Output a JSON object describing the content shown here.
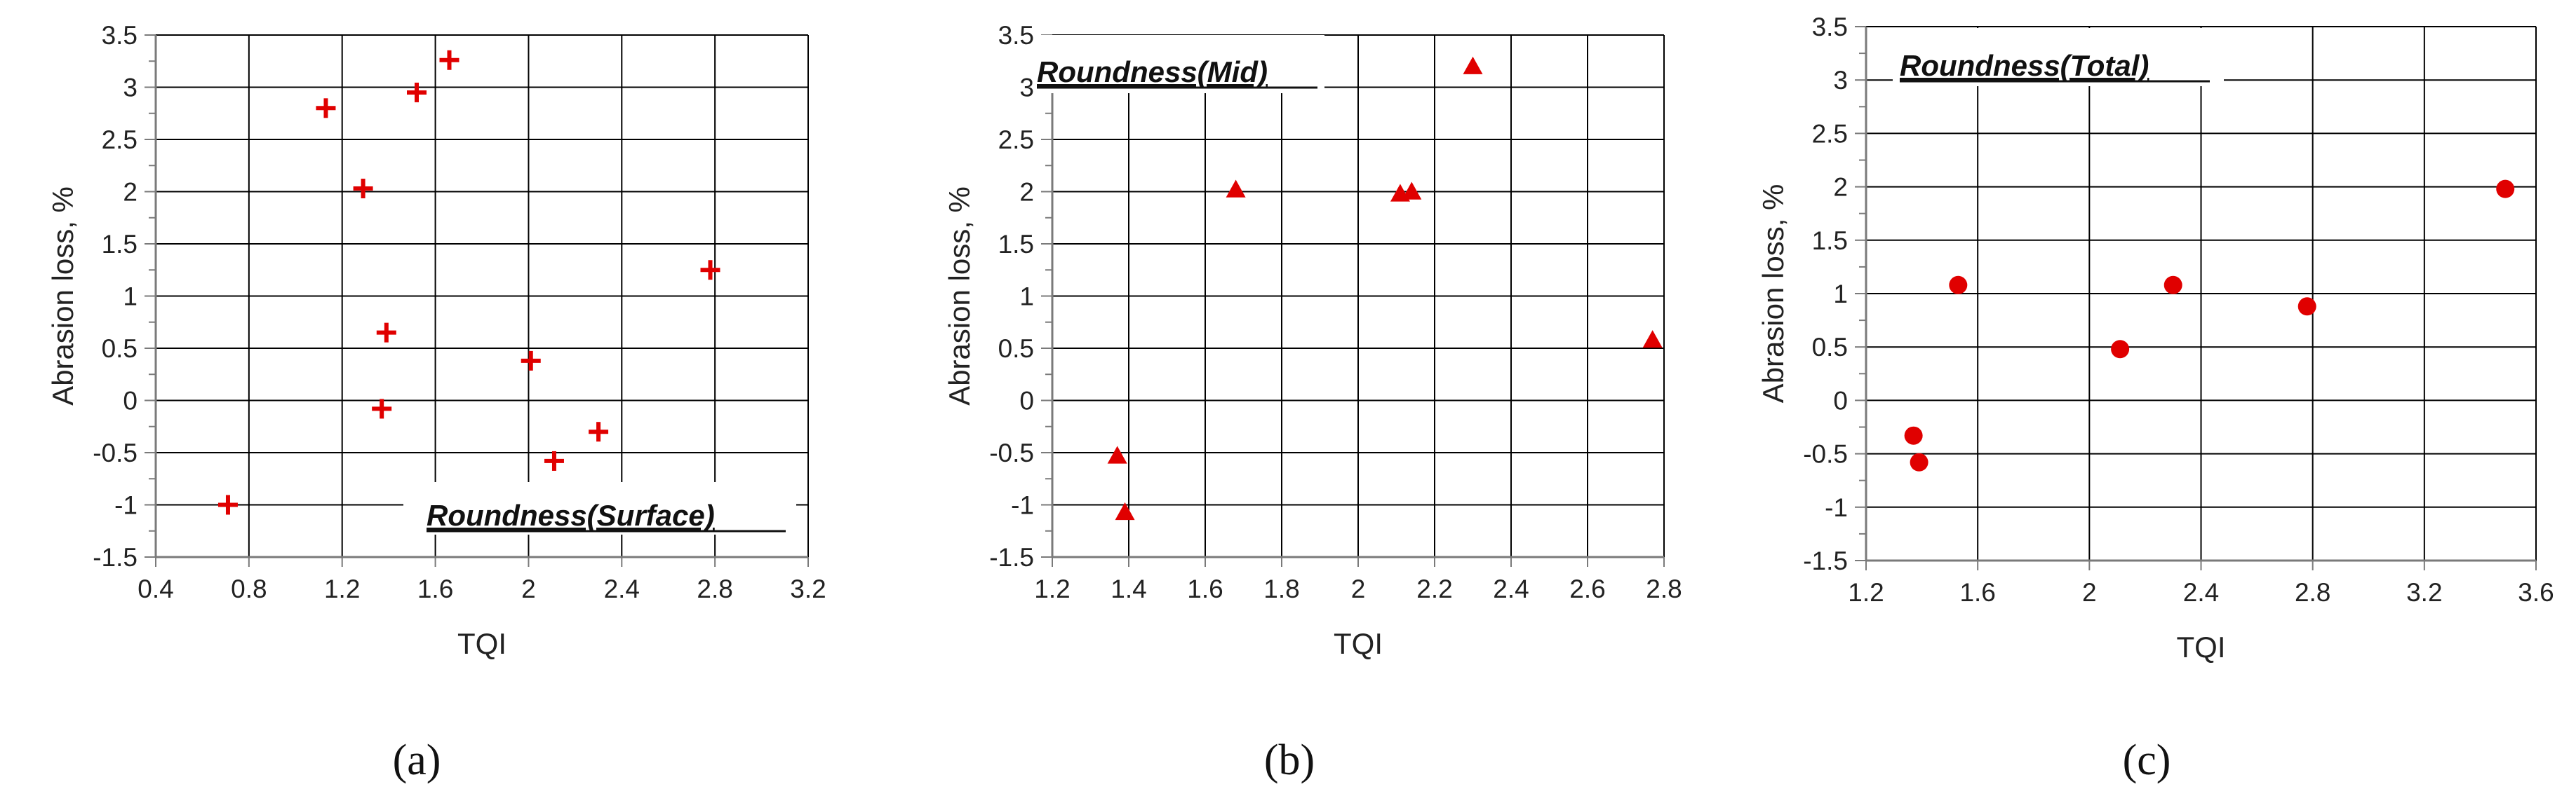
{
  "colors": {
    "marker": "#e00000",
    "grid": "#000000",
    "axis": "#7a7a7a"
  },
  "chart_data": [
    {
      "type": "scatter",
      "panel_label": "(a)",
      "legend_label": "Roundness(Surface)",
      "legend_position": "bottom-right",
      "marker": "plus",
      "xlabel": "TQI",
      "ylabel": "Abrasion loss, %",
      "xlim": [
        0.4,
        3.2
      ],
      "ylim": [
        -1.5,
        3.5
      ],
      "xticks": [
        0.4,
        0.8,
        1.2,
        1.6,
        2,
        2.4,
        2.8,
        3.2
      ],
      "xtick_labels": [
        "0.4",
        "0.8",
        "1.2",
        "1.6",
        "2",
        "2.4",
        "2.8",
        "3.2"
      ],
      "yticks": [
        -1.5,
        -1,
        -0.5,
        0,
        0.5,
        1,
        1.5,
        2,
        2.5,
        3,
        3.5
      ],
      "ytick_labels": [
        "-1.5",
        "-1",
        "-0.5",
        "0",
        "0.5",
        "1",
        "1.5",
        "2",
        "2.5",
        "3",
        "3.5"
      ],
      "points": [
        {
          "x": 0.71,
          "y": -1.0
        },
        {
          "x": 1.13,
          "y": 2.8
        },
        {
          "x": 1.29,
          "y": 2.03
        },
        {
          "x": 1.37,
          "y": -0.08
        },
        {
          "x": 1.39,
          "y": 0.65
        },
        {
          "x": 1.52,
          "y": 2.95
        },
        {
          "x": 1.66,
          "y": 3.26
        },
        {
          "x": 2.01,
          "y": 0.38
        },
        {
          "x": 2.11,
          "y": -0.58
        },
        {
          "x": 2.3,
          "y": -0.3
        },
        {
          "x": 2.78,
          "y": 1.25
        }
      ]
    },
    {
      "type": "scatter",
      "panel_label": "(b)",
      "legend_label": "Roundness(Mid)",
      "legend_position": "top-left",
      "marker": "triangle",
      "xlabel": "TQI",
      "ylabel": "Abrasion loss, %",
      "xlim": [
        1.2,
        2.8
      ],
      "ylim": [
        -1.5,
        3.5
      ],
      "xticks": [
        1.2,
        1.4,
        1.6,
        1.8,
        2,
        2.2,
        2.4,
        2.6,
        2.8
      ],
      "xtick_labels": [
        "1.2",
        "1.4",
        "1.6",
        "1.8",
        "2",
        "2.2",
        "2.4",
        "2.6",
        "2.8"
      ],
      "yticks": [
        -1.5,
        -1,
        -0.5,
        0,
        0.5,
        1,
        1.5,
        2,
        2.5,
        3,
        3.5
      ],
      "ytick_labels": [
        "-1.5",
        "-1",
        "-0.5",
        "0",
        "0.5",
        "1",
        "1.5",
        "2",
        "2.5",
        "3",
        "3.5"
      ],
      "points": [
        {
          "x": 1.37,
          "y": -0.53
        },
        {
          "x": 1.39,
          "y": -1.07
        },
        {
          "x": 1.68,
          "y": 2.02
        },
        {
          "x": 2.11,
          "y": 1.98
        },
        {
          "x": 2.14,
          "y": 2.0
        },
        {
          "x": 2.3,
          "y": 3.2
        },
        {
          "x": 2.77,
          "y": 0.58
        }
      ]
    },
    {
      "type": "scatter",
      "panel_label": "(c)",
      "legend_label": "Roundness(Total)",
      "legend_position": "top-left",
      "marker": "circle",
      "xlabel": "TQI",
      "ylabel": "Abrasion loss, %",
      "xlim": [
        1.2,
        3.6
      ],
      "ylim": [
        -1.5,
        3.5
      ],
      "xticks": [
        1.2,
        1.6,
        2,
        2.4,
        2.8,
        3.2,
        3.6
      ],
      "xtick_labels": [
        "1.2",
        "1.6",
        "2",
        "2.4",
        "2.8",
        "3.2",
        "3.6"
      ],
      "yticks": [
        -1.5,
        -1,
        -0.5,
        0,
        0.5,
        1,
        1.5,
        2,
        2.5,
        3,
        3.5
      ],
      "ytick_labels": [
        "-1.5",
        "-1",
        "-0.5",
        "0",
        "0.5",
        "1",
        "1.5",
        "2",
        "2.5",
        "3",
        "3.5"
      ],
      "points": [
        {
          "x": 1.37,
          "y": -0.33
        },
        {
          "x": 1.39,
          "y": -0.58
        },
        {
          "x": 1.53,
          "y": 1.08
        },
        {
          "x": 2.11,
          "y": 0.48
        },
        {
          "x": 2.3,
          "y": 1.08
        },
        {
          "x": 2.78,
          "y": 0.88
        },
        {
          "x": 3.49,
          "y": 1.98
        }
      ]
    }
  ]
}
